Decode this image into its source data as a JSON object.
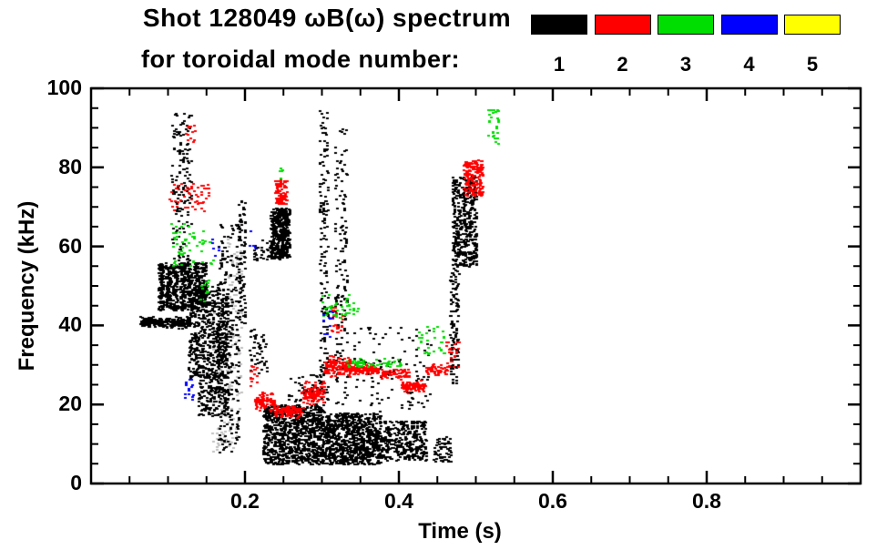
{
  "header": {
    "title_line1": "Shot 128049 ωB(ω) spectrum",
    "title_line2": "for toroidal mode number:"
  },
  "chart_data": {
    "type": "scatter",
    "title": "Shot 128049 ωB(ω) spectrum for toroidal mode number",
    "xlabel": "Time (s)",
    "ylabel": "Frequency (kHz)",
    "xlim": [
      0.0,
      1.0
    ],
    "ylim": [
      0,
      100
    ],
    "grid": false,
    "legend_position": "top-right-outside",
    "x_major_ticks": {
      "values": [
        0.2,
        0.4,
        0.6,
        0.8
      ],
      "labels": [
        "0.2",
        "0.4",
        "0.6",
        "0.8"
      ]
    },
    "y_major_ticks": {
      "values": [
        0,
        20,
        40,
        60,
        80,
        100
      ],
      "labels": [
        "0",
        "20",
        "40",
        "60",
        "80",
        "100"
      ]
    },
    "x_minor_step": 0.05,
    "y_minor_step": 5,
    "legend": [
      {
        "label": "1",
        "color": "#000000"
      },
      {
        "label": "2",
        "color": "#ff0000"
      },
      {
        "label": "3",
        "color": "#00dd00"
      },
      {
        "label": "4",
        "color": "#0000ff"
      },
      {
        "label": "5",
        "color": "#ffff00"
      }
    ],
    "series": [
      {
        "name": "toroidal mode n=1",
        "color": "#000000",
        "clusters": [
          {
            "color": "#c0c0c0",
            "shape": "vstreaks",
            "streaks": 4,
            "t": [
              0.155,
              0.175
            ],
            "f": [
              8,
              47
            ],
            "n": 90
          },
          {
            "color": "#c0c0c0",
            "shape": "vstreaks",
            "streaks": 4,
            "t": [
              0.175,
              0.195
            ],
            "f": [
              8,
              62
            ],
            "n": 120
          },
          {
            "shape": "hband",
            "t": [
              0.063,
              0.128
            ],
            "f": [
              39,
              43
            ],
            "n": 260
          },
          {
            "shape": "vstreaks",
            "streaks": 7,
            "t": [
              0.085,
              0.15
            ],
            "f": [
              44,
              56
            ],
            "n": 700
          },
          {
            "shape": "vstreaks",
            "streaks": 6,
            "t": [
              0.103,
              0.13
            ],
            "f": [
              56,
              94
            ],
            "n": 150
          },
          {
            "shape": "vstreaks",
            "streaks": 9,
            "t": [
              0.125,
              0.178
            ],
            "f": [
              27,
              50
            ],
            "n": 600
          },
          {
            "shape": "scatter",
            "t": [
              0.138,
              0.178
            ],
            "f": [
              17,
              28
            ],
            "n": 180
          },
          {
            "shape": "vstreaks",
            "streaks": 4,
            "t": [
              0.163,
              0.192
            ],
            "f": [
              8,
              66
            ],
            "n": 230
          },
          {
            "shape": "vstreaks",
            "streaks": 2,
            "t": [
              0.19,
              0.2
            ],
            "f": [
              40,
              72
            ],
            "n": 90
          },
          {
            "shape": "scatter",
            "t": [
              0.205,
              0.228
            ],
            "f": [
              28,
              40
            ],
            "n": 45
          },
          {
            "shape": "scatter",
            "t": [
              0.21,
              0.232
            ],
            "f": [
              56,
              62
            ],
            "n": 30
          },
          {
            "shape": "scatter",
            "t": [
              0.232,
              0.257
            ],
            "f": [
              57,
              70
            ],
            "n": 420
          },
          {
            "shape": "scatter",
            "t": [
              0.222,
              0.302
            ],
            "f": [
              5,
              20
            ],
            "n": 950
          },
          {
            "shape": "scatter",
            "t": [
              0.302,
              0.375
            ],
            "f": [
              5,
              18
            ],
            "n": 800
          },
          {
            "shape": "scatter",
            "t": [
              0.375,
              0.435
            ],
            "f": [
              6,
              16
            ],
            "n": 330
          },
          {
            "shape": "vstreaks",
            "streaks": 3,
            "t": [
              0.295,
              0.307
            ],
            "f": [
              20,
              95
            ],
            "n": 170
          },
          {
            "shape": "vstreaks",
            "streaks": 3,
            "t": [
              0.315,
              0.332
            ],
            "f": [
              20,
              90
            ],
            "n": 150
          },
          {
            "shape": "scatter",
            "t": [
              0.255,
              0.3
            ],
            "f": [
              20,
              28
            ],
            "n": 45
          },
          {
            "shape": "scatter",
            "t": [
              0.34,
              0.44
            ],
            "f": [
              18,
              40
            ],
            "n": 110
          },
          {
            "shape": "vstreaks",
            "streaks": 2,
            "t": [
              0.465,
              0.477
            ],
            "f": [
              25,
              55
            ],
            "n": 110
          },
          {
            "shape": "scatter",
            "t": [
              0.468,
              0.5
            ],
            "f": [
              55,
              78
            ],
            "n": 420
          },
          {
            "shape": "scatter",
            "t": [
              0.443,
              0.468
            ],
            "f": [
              5,
              12
            ],
            "n": 60
          }
        ]
      },
      {
        "name": "toroidal mode n=2",
        "color": "#ff0000",
        "clusters": [
          {
            "shape": "scatter",
            "t": [
              0.1,
              0.152
            ],
            "f": [
              69,
              76
            ],
            "n": 55
          },
          {
            "shape": "scatter",
            "t": [
              0.122,
              0.135
            ],
            "f": [
              86,
              91
            ],
            "n": 12
          },
          {
            "shape": "scatter",
            "t": [
              0.238,
              0.253
            ],
            "f": [
              71,
              77
            ],
            "n": 90
          },
          {
            "shape": "hband",
            "t": [
              0.212,
              0.237
            ],
            "f": [
              18,
              24
            ],
            "n": 90
          },
          {
            "shape": "hband",
            "t": [
              0.237,
              0.272
            ],
            "f": [
              16.5,
              20.5
            ],
            "n": 120
          },
          {
            "shape": "hband",
            "t": [
              0.272,
              0.302
            ],
            "f": [
              19,
              27
            ],
            "n": 110
          },
          {
            "shape": "hband",
            "t": [
              0.302,
              0.337
            ],
            "f": [
              26,
              33.5
            ],
            "n": 140
          },
          {
            "shape": "hband",
            "t": [
              0.337,
              0.372
            ],
            "f": [
              27,
              31
            ],
            "n": 120
          },
          {
            "shape": "hband",
            "t": [
              0.375,
              0.412
            ],
            "f": [
              26,
              30
            ],
            "n": 70
          },
          {
            "shape": "hband",
            "t": [
              0.402,
              0.434
            ],
            "f": [
              22.5,
              27
            ],
            "n": 90
          },
          {
            "shape": "hband",
            "t": [
              0.434,
              0.463
            ],
            "f": [
              27,
              31
            ],
            "n": 45
          },
          {
            "shape": "scatter",
            "t": [
              0.483,
              0.508
            ],
            "f": [
              73,
              82
            ],
            "n": 170
          },
          {
            "shape": "scatter",
            "t": [
              0.458,
              0.477
            ],
            "f": [
              29,
              36
            ],
            "n": 25
          },
          {
            "shape": "scatter",
            "t": [
              0.31,
              0.327
            ],
            "f": [
              38,
              45
            ],
            "n": 22
          },
          {
            "shape": "scatter",
            "t": [
              0.205,
              0.215
            ],
            "f": [
              24,
              30
            ],
            "n": 18
          }
        ]
      },
      {
        "name": "toroidal mode n=3",
        "color": "#00dd00",
        "clusters": [
          {
            "shape": "scatter",
            "t": [
              0.103,
              0.158
            ],
            "f": [
              55,
              66
            ],
            "n": 55
          },
          {
            "shape": "scatter",
            "t": [
              0.14,
              0.152
            ],
            "f": [
              46,
              52
            ],
            "n": 12
          },
          {
            "shape": "scatter",
            "t": [
              0.298,
              0.345
            ],
            "f": [
              42,
              48
            ],
            "n": 40
          },
          {
            "shape": "hband",
            "t": [
              0.33,
              0.402
            ],
            "f": [
              29,
              32.5
            ],
            "n": 55
          },
          {
            "shape": "scatter",
            "t": [
              0.422,
              0.458
            ],
            "f": [
              33,
              40
            ],
            "n": 30
          },
          {
            "shape": "scatter",
            "t": [
              0.515,
              0.528
            ],
            "f": [
              86,
              95
            ],
            "n": 28
          },
          {
            "shape": "scatter",
            "t": [
              0.243,
              0.25
            ],
            "f": [
              77,
              80
            ],
            "n": 6
          }
        ]
      },
      {
        "name": "toroidal mode n=4",
        "color": "#0000ff",
        "clusters": [
          {
            "shape": "scatter",
            "t": [
              0.117,
              0.133
            ],
            "f": [
              21,
              27
            ],
            "n": 15
          },
          {
            "shape": "scatter",
            "t": [
              0.298,
              0.315
            ],
            "f": [
              37,
              44
            ],
            "n": 12
          },
          {
            "shape": "scatter",
            "t": [
              0.155,
              0.166
            ],
            "f": [
              57,
              63
            ],
            "n": 6
          },
          {
            "shape": "scatter",
            "t": [
              0.205,
              0.212
            ],
            "f": [
              60,
              64
            ],
            "n": 4
          }
        ]
      },
      {
        "name": "toroidal mode n=5",
        "color": "#ffff00",
        "clusters": []
      }
    ]
  }
}
